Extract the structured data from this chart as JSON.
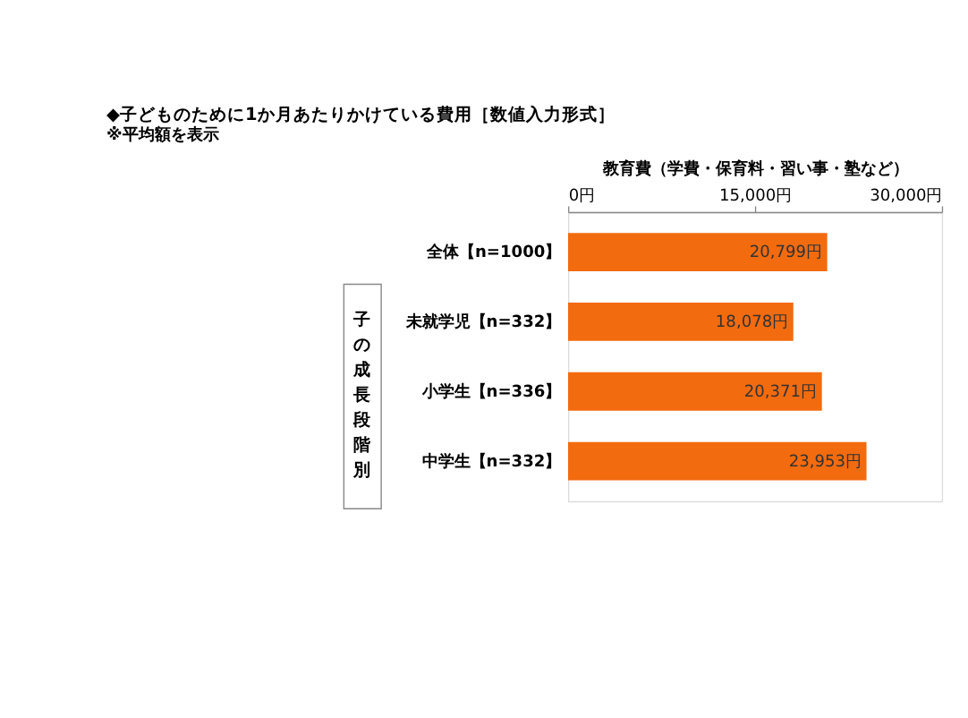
{
  "chart_data": {
    "type": "bar",
    "orientation": "horizontal",
    "title": "◆子どものために1か月あたりかけている費用［数値入力形式］",
    "subtitle": "※平均額を表示",
    "xlabel": "教育費（学費・保育料・習い事・塾など）",
    "categories": [
      "全体【n=1000】",
      "未就学児【n=332】",
      "小学生【n=336】",
      "中学生【n=332】"
    ],
    "values": [
      20799,
      18078,
      20371,
      23953
    ],
    "value_labels": [
      "20,799円",
      "18,078円",
      "20,371円",
      "23,953円"
    ],
    "color": "#f26b0f",
    "xlim": [
      0,
      30000
    ],
    "xticks": [
      {
        "value": 0,
        "label": "0円"
      },
      {
        "value": 15000,
        "label": "15,000円"
      },
      {
        "value": 30000,
        "label": "30,000円"
      }
    ],
    "annotations": [
      "子の成長段階別"
    ],
    "grid": false
  }
}
